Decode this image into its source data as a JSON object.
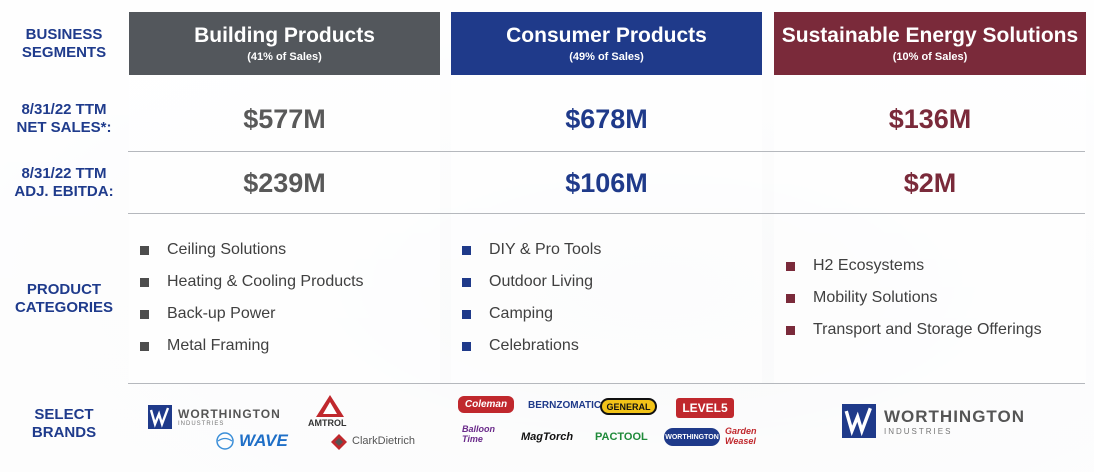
{
  "row_labels": {
    "segments": [
      "BUSINESS",
      "SEGMENTS"
    ],
    "net_sales": [
      "8/31/22 TTM",
      "NET SALES*:"
    ],
    "ebitda": [
      "8/31/22 TTM",
      "ADJ. EBITDA:"
    ],
    "categories": [
      "PRODUCT",
      "CATEGORIES"
    ],
    "brands": [
      "SELECT",
      "BRANDS"
    ]
  },
  "segments": [
    {
      "title": "Building Products",
      "subtitle": "(41% of Sales)",
      "net_sales": "$577M",
      "ebitda": "$239M",
      "header_color": "#53575c",
      "value_color": "#595959",
      "bullet_color": "#4d4d4d",
      "categories": [
        "Ceiling Solutions",
        "Heating & Cooling Products",
        "Back-up Power",
        "Metal Framing"
      ],
      "brands": [
        "WORTHINGTON",
        "INDUSTRIES",
        "AMTROL",
        "WAVE",
        "ClarkDietrich"
      ]
    },
    {
      "title": "Consumer Products",
      "subtitle": "(49% of Sales)",
      "net_sales": "$678M",
      "ebitda": "$106M",
      "header_color": "#1f3a8a",
      "value_color": "#1f3a8a",
      "bullet_color": "#1f3a8a",
      "categories": [
        "DIY & Pro Tools",
        "Outdoor Living",
        "Camping",
        "Celebrations"
      ],
      "brands": [
        "Coleman",
        "BERNZOMATIC",
        "GENERAL",
        "LEVEL5",
        "Balloon Time",
        "MagTorch",
        "PACTOOL",
        "WORTHINGTON",
        "Garden Weasel"
      ]
    },
    {
      "title": "Sustainable Energy Solutions",
      "subtitle": "(10% of Sales)",
      "net_sales": "$136M",
      "ebitda": "$2M",
      "header_color": "#7a2a3a",
      "value_color": "#7a2a3a",
      "bullet_color": "#7a2a3a",
      "categories": [
        "H2 Ecosystems",
        "Mobility Solutions",
        "Transport and Storage Offerings"
      ],
      "brands": [
        "WORTHINGTON",
        "INDUSTRIES"
      ]
    }
  ]
}
